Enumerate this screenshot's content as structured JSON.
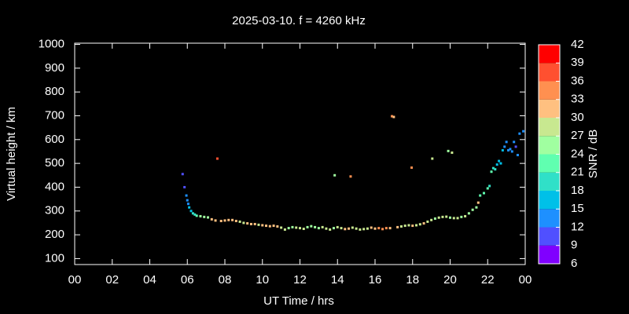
{
  "chart_data": {
    "type": "scatter",
    "title": "2025-03-10. f = 4260 kHz",
    "x_label": "UT Time / hrs",
    "y_label": "Virtual height / km",
    "colorbar_label": "SNR / dB",
    "xlim": [
      0,
      24
    ],
    "xticks": [
      {
        "value": 0,
        "label": "00"
      },
      {
        "value": 2,
        "label": "02"
      },
      {
        "value": 4,
        "label": "04"
      },
      {
        "value": 6,
        "label": "06"
      },
      {
        "value": 8,
        "label": "08"
      },
      10,
      12,
      14,
      16,
      18,
      20,
      22,
      {
        "value": 24,
        "label": "00"
      }
    ],
    "ylim": [
      75,
      1005
    ],
    "yticks": [
      100,
      200,
      300,
      400,
      500,
      600,
      700,
      800,
      900,
      1000
    ],
    "clim": [
      6,
      42
    ],
    "cticks": [
      6,
      9,
      12,
      15,
      18,
      21,
      24,
      27,
      30,
      33,
      36,
      39,
      42
    ],
    "colormap": [
      "#8000ff",
      "#5050ff",
      "#1e90ff",
      "#00c0e8",
      "#30e0c8",
      "#60ffb0",
      "#a0ffa0",
      "#c8e890",
      "#ffc080",
      "#ff9050",
      "#ff5030",
      "#ff0000"
    ],
    "x": [
      5.75,
      5.85,
      5.95,
      6.0,
      6.05,
      6.1,
      6.2,
      6.3,
      6.4,
      6.5,
      6.7,
      6.9,
      7.1,
      7.3,
      7.5,
      7.6,
      7.8,
      8.0,
      8.2,
      8.4,
      8.6,
      8.8,
      9.0,
      9.2,
      9.4,
      9.6,
      9.8,
      10.0,
      10.2,
      10.4,
      10.6,
      10.8,
      11.0,
      11.2,
      11.4,
      11.6,
      11.8,
      12.0,
      12.2,
      12.4,
      12.6,
      12.8,
      13.0,
      13.2,
      13.4,
      13.6,
      13.8,
      13.85,
      14.0,
      14.2,
      14.4,
      14.6,
      14.7,
      14.8,
      15.0,
      15.2,
      15.4,
      15.6,
      15.8,
      16.0,
      16.2,
      16.4,
      16.6,
      16.8,
      16.9,
      17.0,
      17.2,
      17.4,
      17.6,
      17.8,
      17.95,
      18.0,
      18.2,
      18.4,
      18.6,
      18.8,
      19.0,
      19.05,
      19.2,
      19.4,
      19.6,
      19.8,
      19.9,
      20.0,
      20.1,
      20.2,
      20.4,
      20.6,
      20.8,
      21.0,
      21.2,
      21.4,
      21.5,
      21.6,
      21.8,
      22.0,
      22.1,
      22.2,
      22.3,
      22.4,
      22.5,
      22.6,
      22.7,
      22.8,
      22.9,
      23.0,
      23.1,
      23.2,
      23.3,
      23.4,
      23.5,
      23.6,
      23.7,
      23.9
    ],
    "values": [
      455,
      400,
      365,
      345,
      330,
      315,
      300,
      290,
      285,
      280,
      278,
      275,
      273,
      265,
      260,
      520,
      258,
      260,
      262,
      262,
      258,
      255,
      250,
      248,
      245,
      245,
      242,
      240,
      238,
      236,
      238,
      235,
      230,
      222,
      228,
      232,
      230,
      228,
      225,
      232,
      236,
      232,
      228,
      232,
      226,
      222,
      228,
      450,
      232,
      228,
      224,
      226,
      445,
      230,
      226,
      222,
      224,
      226,
      230,
      226,
      228,
      224,
      228,
      228,
      698,
      695,
      232,
      235,
      238,
      240,
      482,
      238,
      240,
      244,
      248,
      255,
      262,
      520,
      268,
      272,
      275,
      276,
      552,
      272,
      545,
      270,
      270,
      275,
      278,
      290,
      305,
      315,
      335,
      365,
      375,
      395,
      405,
      465,
      480,
      475,
      495,
      510,
      500,
      555,
      570,
      590,
      555,
      560,
      550,
      590,
      570,
      535,
      625,
      635
    ],
    "color_values": [
      9,
      10,
      12,
      13,
      14,
      15,
      16,
      18,
      19,
      21,
      24,
      24,
      25,
      30,
      30,
      38,
      31,
      30,
      30,
      31,
      30,
      29,
      27,
      30,
      30,
      30,
      29,
      30,
      31,
      31,
      30,
      30,
      29,
      27,
      26,
      24,
      27,
      29,
      27,
      24,
      25,
      24,
      26,
      27,
      29,
      28,
      26,
      24,
      27,
      28,
      30,
      30,
      33,
      27,
      28,
      27,
      29,
      28,
      30,
      31,
      33,
      35,
      33,
      32,
      33,
      32,
      30,
      28,
      27,
      27,
      35,
      30,
      29,
      28,
      30,
      29,
      28,
      27,
      26,
      27,
      28,
      27,
      24,
      26,
      28,
      28,
      27,
      25,
      27,
      26,
      24,
      25,
      30,
      22,
      22,
      21,
      20,
      21,
      19,
      18,
      17,
      16,
      17,
      15,
      14,
      13,
      12,
      12,
      13,
      13,
      11,
      14,
      12,
      13
    ]
  }
}
